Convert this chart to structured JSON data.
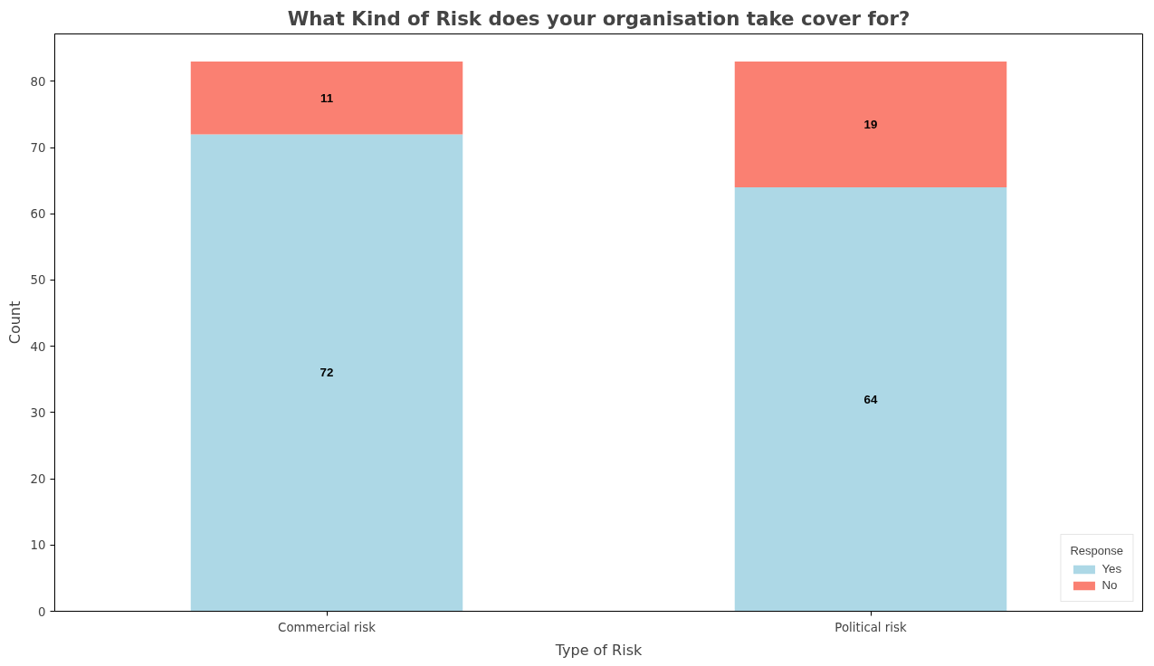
{
  "chart_data": {
    "type": "bar",
    "title": "What Kind of Risk does your organisation take cover for?",
    "xlabel": "Type of Risk",
    "ylabel": "Count",
    "legend_title": "Response",
    "categories": [
      "Commercial risk",
      "Political risk"
    ],
    "stacked": true,
    "series": [
      {
        "name": "Yes",
        "color": "#add8e6",
        "values": [
          72,
          64
        ]
      },
      {
        "name": "No",
        "color": "#fa8072",
        "values": [
          11,
          19
        ]
      }
    ],
    "ylim": [
      0,
      87.15
    ],
    "yticks": [
      0,
      10,
      20,
      30,
      40,
      50,
      60,
      70,
      80
    ],
    "data_labels": true,
    "legend": "bottom right",
    "grid": false
  }
}
